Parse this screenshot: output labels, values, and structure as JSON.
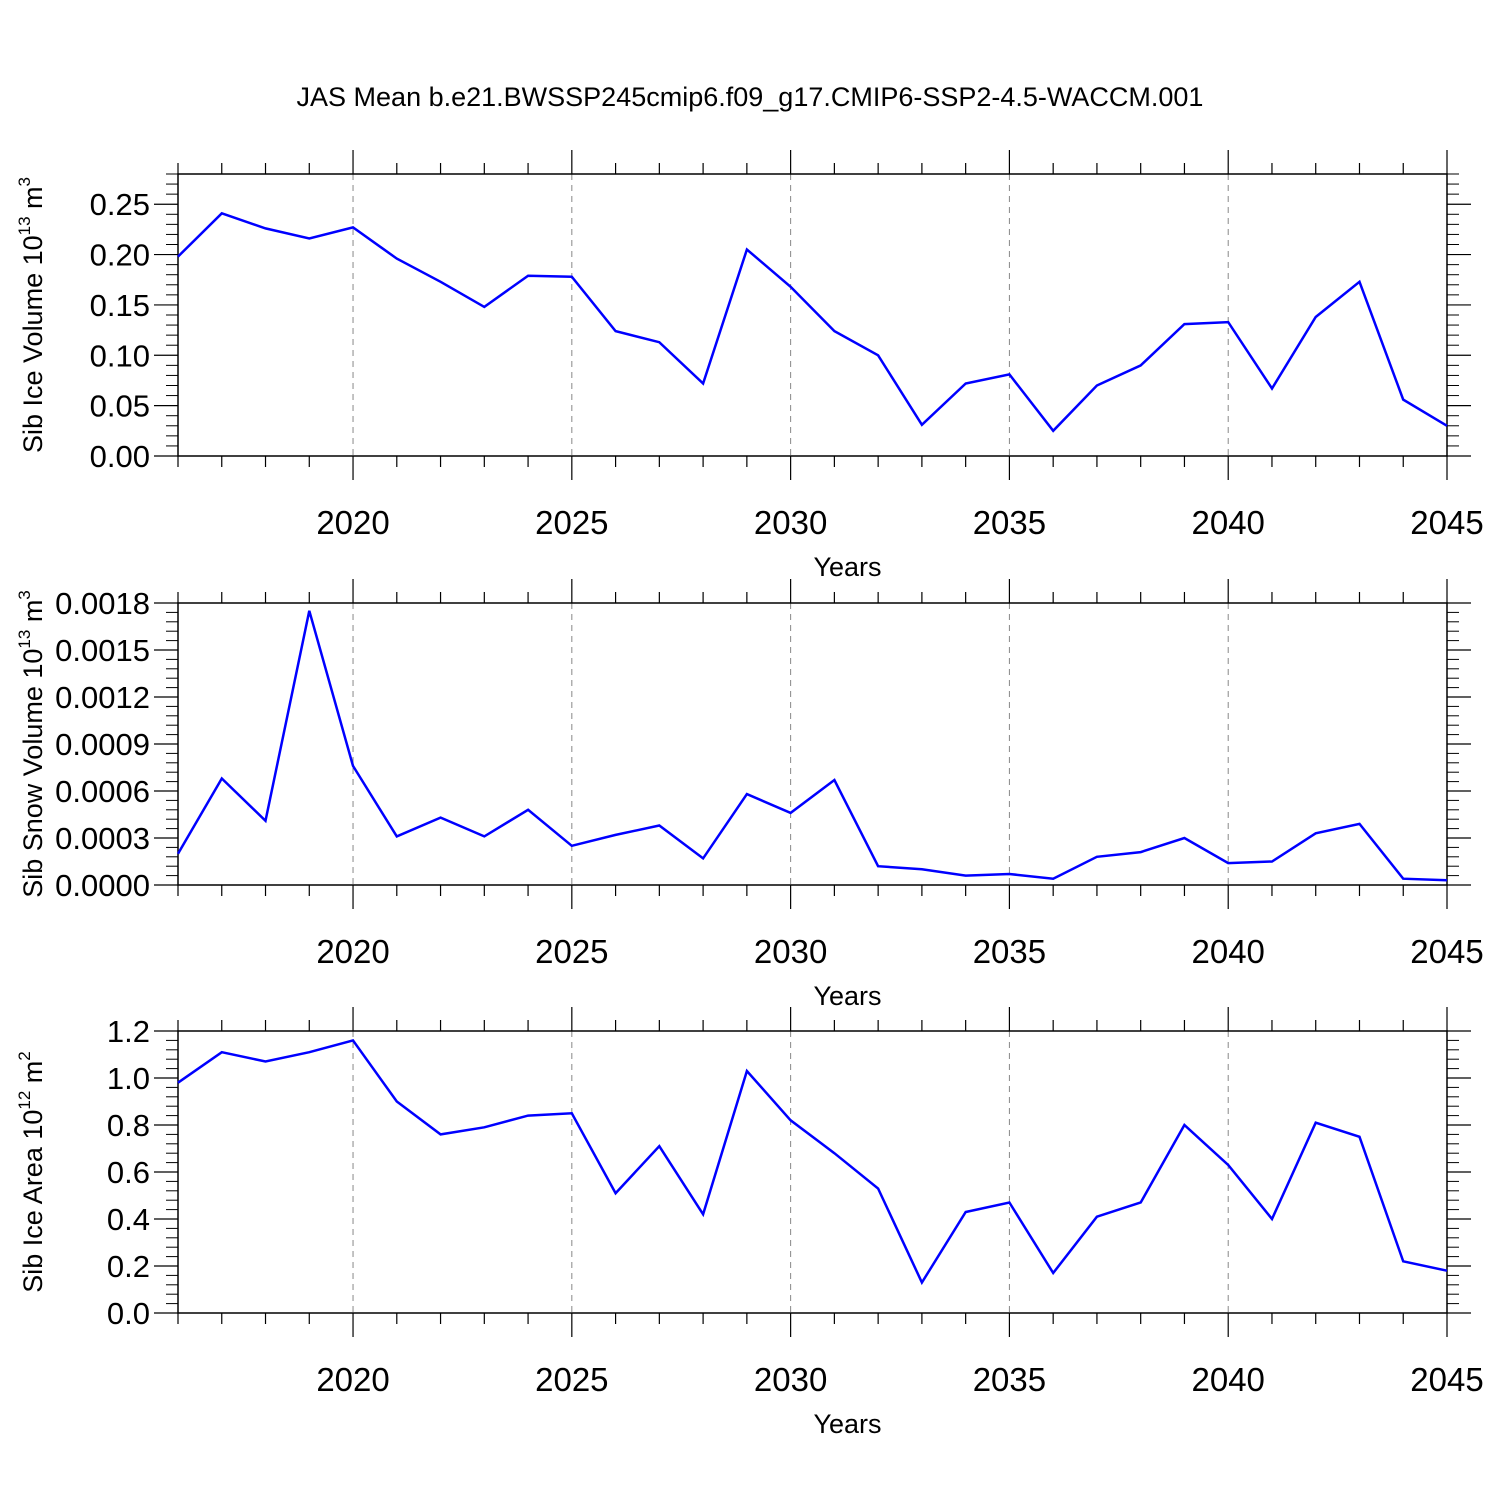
{
  "title": "JAS Mean b.e21.BWSSP245cmip6.f09_g17.CMIP6-SSP2-4.5-WACCM.001",
  "colors": {
    "line": "#0000ff",
    "grid": "#888888",
    "axis": "#000000"
  },
  "chart_data": [
    {
      "type": "line",
      "xlabel": "Years",
      "ylabel": "Sib Ice Volume 10",
      "ylabel_exp": "13",
      "ylabel_unit": " m",
      "ylabel_unit_exp": "3",
      "xlim": [
        2016,
        2045
      ],
      "ylim": [
        0,
        0.28
      ],
      "xticks": [
        2020,
        2025,
        2030,
        2035,
        2040,
        2045
      ],
      "yticks": [
        "0.00",
        "0.05",
        "0.10",
        "0.15",
        "0.20",
        "0.25"
      ],
      "ytick_values": [
        0,
        0.05,
        0.1,
        0.15,
        0.2,
        0.25
      ],
      "grid": "vertical dashed at major x ticks",
      "x": [
        2016,
        2017,
        2018,
        2019,
        2020,
        2021,
        2022,
        2023,
        2024,
        2025,
        2026,
        2027,
        2028,
        2029,
        2030,
        2031,
        2032,
        2033,
        2034,
        2035,
        2036,
        2037,
        2038,
        2039,
        2040,
        2041,
        2042,
        2043,
        2044,
        2045
      ],
      "values": [
        0.198,
        0.241,
        0.226,
        0.216,
        0.227,
        0.196,
        0.173,
        0.148,
        0.179,
        0.178,
        0.124,
        0.113,
        0.072,
        0.205,
        0.168,
        0.124,
        0.1,
        0.031,
        0.072,
        0.081,
        0.025,
        0.07,
        0.09,
        0.131,
        0.133,
        0.067,
        0.138,
        0.173,
        0.056,
        0.03
      ]
    },
    {
      "type": "line",
      "xlabel": "Years",
      "ylabel": "Sib Snow Volume 10",
      "ylabel_exp": "13",
      "ylabel_unit": " m",
      "ylabel_unit_exp": "3",
      "xlim": [
        2016,
        2045
      ],
      "ylim": [
        0,
        0.0018
      ],
      "xticks": [
        2020,
        2025,
        2030,
        2035,
        2040,
        2045
      ],
      "yticks": [
        "0.0000",
        "0.0003",
        "0.0006",
        "0.0009",
        "0.0012",
        "0.0015",
        "0.0018"
      ],
      "ytick_values": [
        0,
        0.0003,
        0.0006,
        0.0009,
        0.0012,
        0.0015,
        0.0018
      ],
      "grid": "vertical dashed at major x ticks",
      "x": [
        2016,
        2017,
        2018,
        2019,
        2020,
        2021,
        2022,
        2023,
        2024,
        2025,
        2026,
        2027,
        2028,
        2029,
        2030,
        2031,
        2032,
        2033,
        2034,
        2035,
        2036,
        2037,
        2038,
        2039,
        2040,
        2041,
        2042,
        2043,
        2044,
        2045
      ],
      "values": [
        0.0002,
        0.00068,
        0.00041,
        0.00175,
        0.00076,
        0.00031,
        0.00043,
        0.00031,
        0.00048,
        0.00025,
        0.00032,
        0.00038,
        0.00017,
        0.00058,
        0.00046,
        0.00067,
        0.00012,
        0.0001,
        6e-05,
        7e-05,
        4e-05,
        0.00018,
        0.00021,
        0.0003,
        0.00014,
        0.00015,
        0.00033,
        0.00039,
        4e-05,
        3e-05
      ]
    },
    {
      "type": "line",
      "xlabel": "Years",
      "ylabel": "Sib Ice Area 10",
      "ylabel_exp": "12",
      "ylabel_unit": " m",
      "ylabel_unit_exp": "2",
      "xlim": [
        2016,
        2045
      ],
      "ylim": [
        0,
        1.2
      ],
      "xticks": [
        2020,
        2025,
        2030,
        2035,
        2040,
        2045
      ],
      "yticks": [
        "0.0",
        "0.2",
        "0.4",
        "0.6",
        "0.8",
        "1.0",
        "1.2"
      ],
      "ytick_values": [
        0,
        0.2,
        0.4,
        0.6,
        0.8,
        1.0,
        1.2
      ],
      "grid": "vertical dashed at major x ticks",
      "x": [
        2016,
        2017,
        2018,
        2019,
        2020,
        2021,
        2022,
        2023,
        2024,
        2025,
        2026,
        2027,
        2028,
        2029,
        2030,
        2031,
        2032,
        2033,
        2034,
        2035,
        2036,
        2037,
        2038,
        2039,
        2040,
        2041,
        2042,
        2043,
        2044,
        2045
      ],
      "values": [
        0.98,
        1.11,
        1.07,
        1.11,
        1.16,
        0.9,
        0.76,
        0.79,
        0.84,
        0.85,
        0.51,
        0.71,
        0.42,
        1.03,
        0.82,
        0.68,
        0.53,
        0.13,
        0.43,
        0.47,
        0.17,
        0.41,
        0.47,
        0.8,
        0.63,
        0.4,
        0.81,
        0.75,
        0.22,
        0.18
      ]
    }
  ]
}
